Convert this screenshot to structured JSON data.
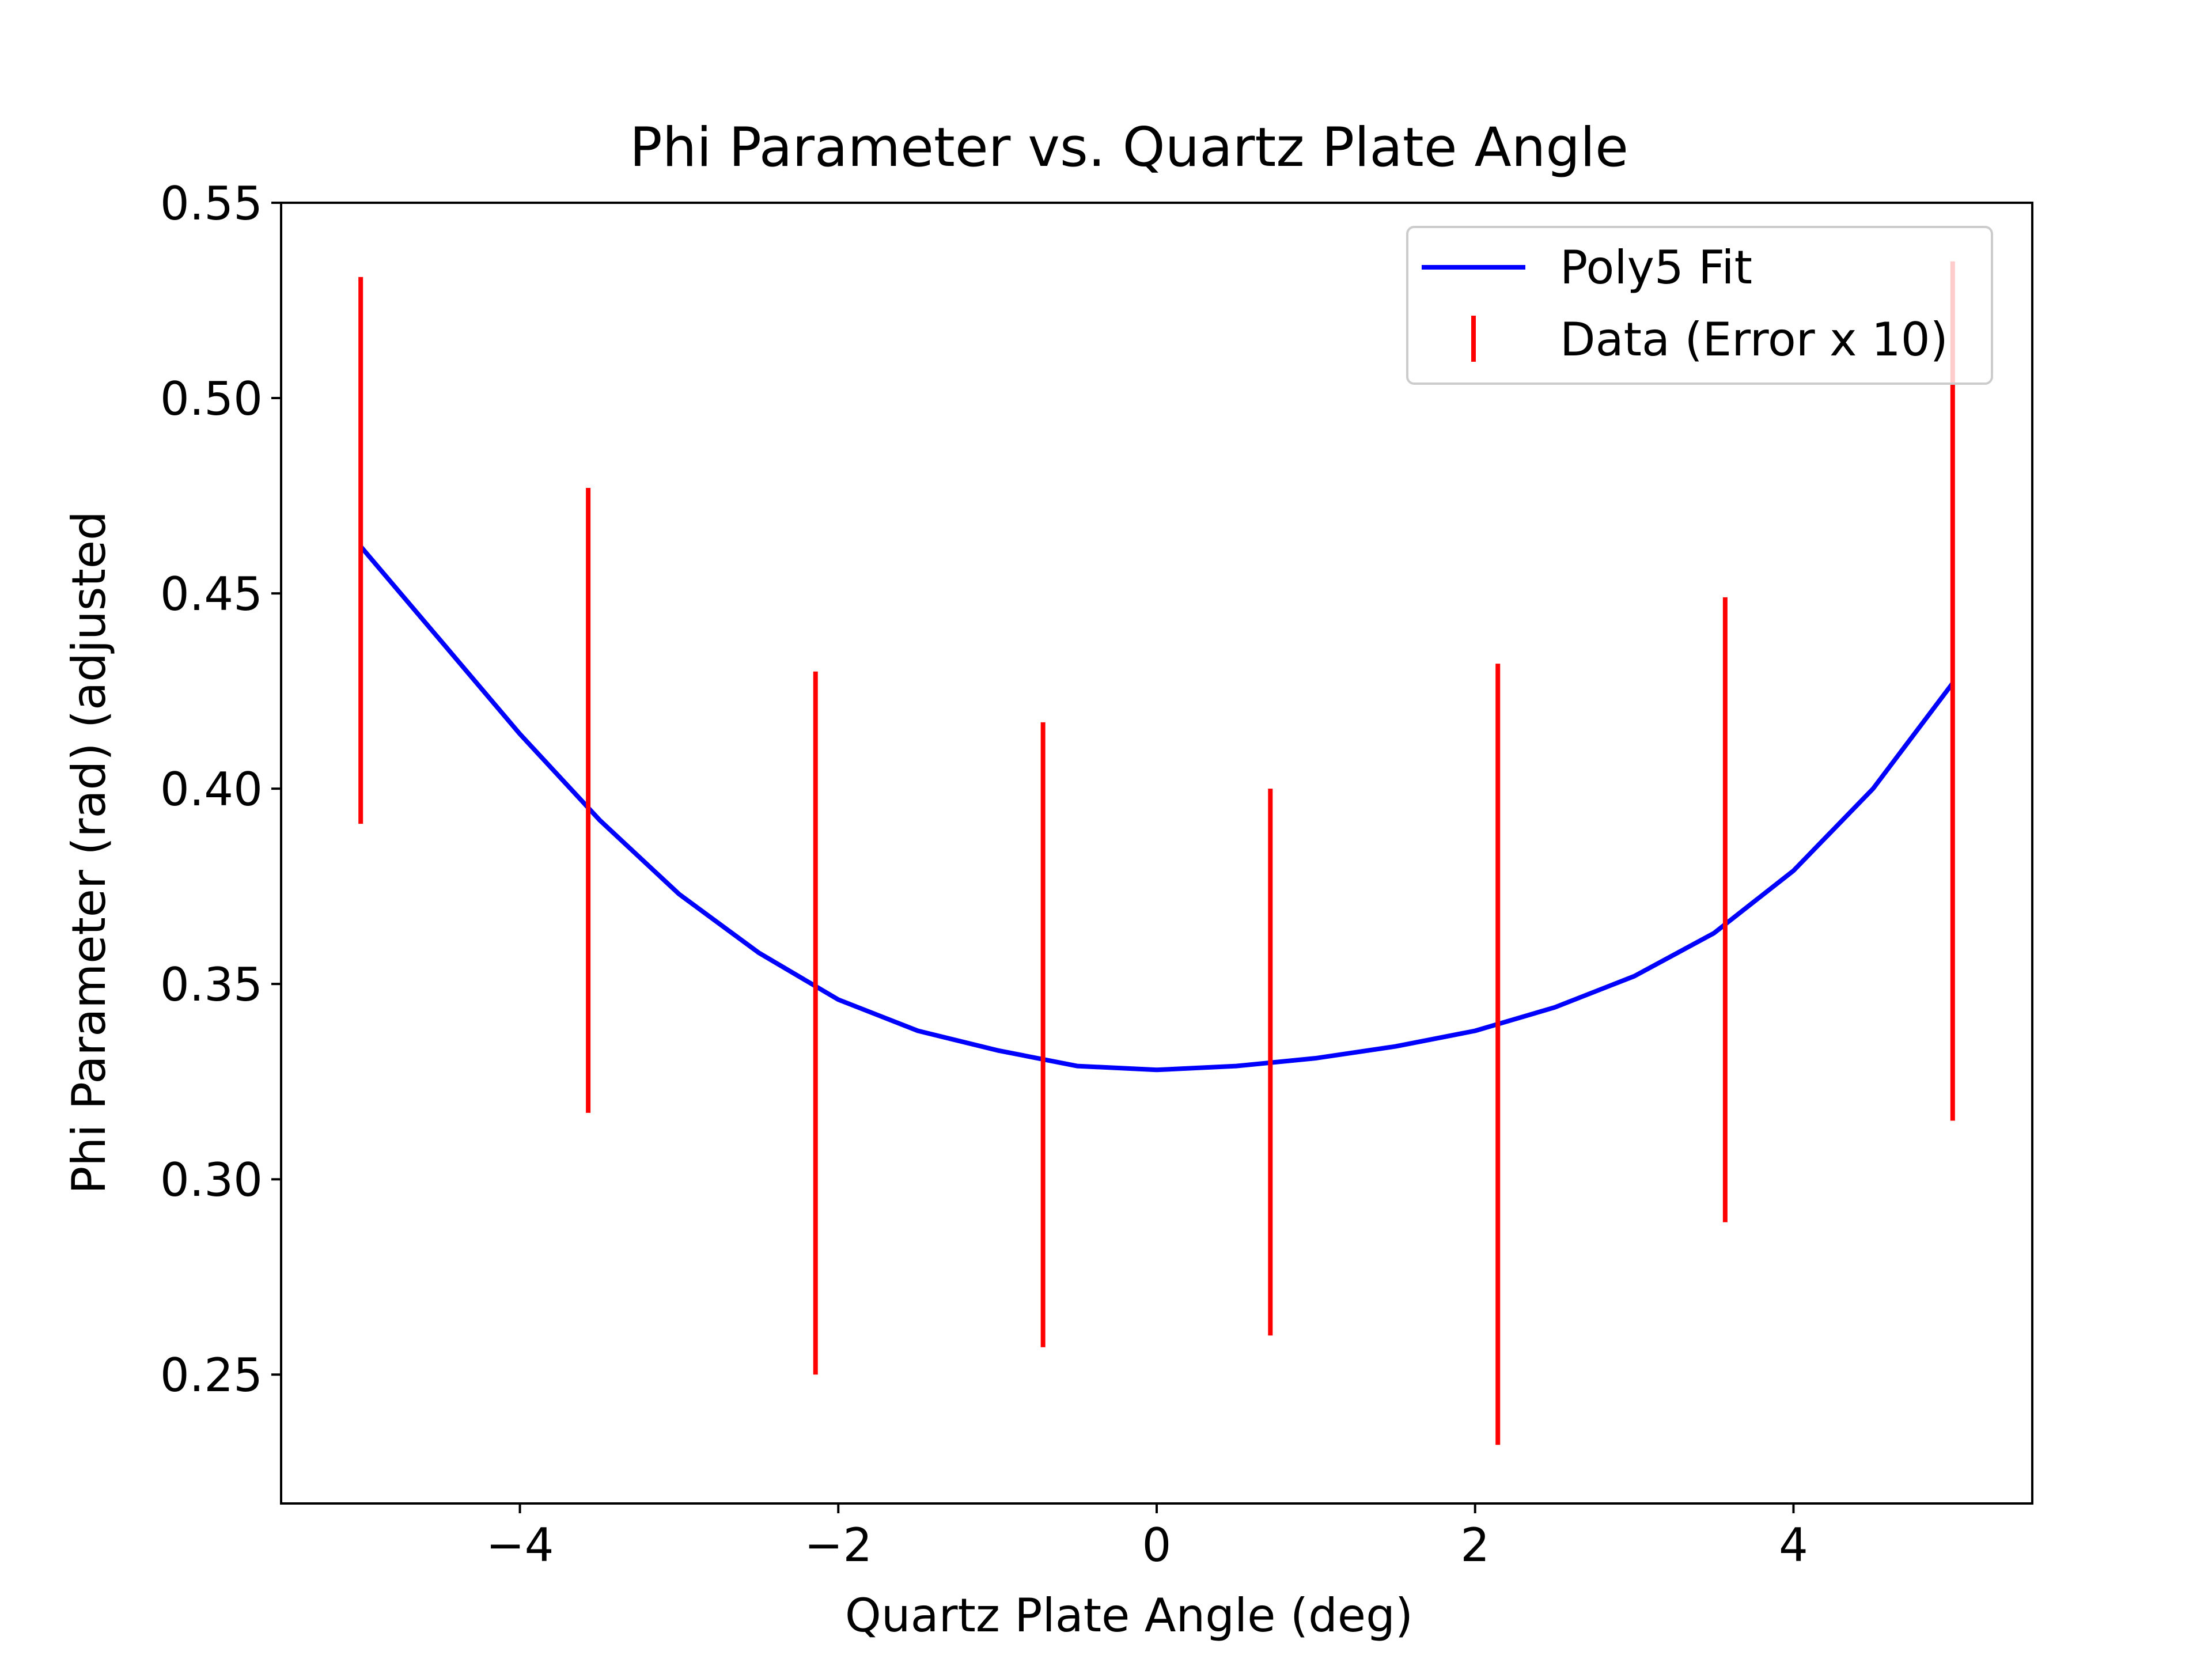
{
  "chart_data": {
    "type": "scatter",
    "title": "Phi Parameter vs. Quartz Plate Angle",
    "xlabel": "Quartz Plate Angle (deg)",
    "ylabel": "Phi Parameter (rad) (adjusted",
    "xlim": [
      -5.5,
      5.5
    ],
    "ylim": [
      0.217,
      0.55
    ],
    "xticks": [
      -4,
      -2,
      0,
      2,
      4
    ],
    "xtick_labels": [
      "−4",
      "−2",
      "0",
      "2",
      "4"
    ],
    "yticks": [
      0.25,
      0.3,
      0.35,
      0.4,
      0.45,
      0.5,
      0.55
    ],
    "ytick_labels": [
      "0.25",
      "0.30",
      "0.35",
      "0.40",
      "0.45",
      "0.50",
      "0.55"
    ],
    "grid": false,
    "legend_position": "upper right",
    "series": [
      {
        "name": "Poly5 Fit",
        "kind": "line",
        "color": "#0000ff",
        "x": [
          -5.0,
          -4.5,
          -4.0,
          -3.5,
          -3.0,
          -2.5,
          -2.0,
          -1.5,
          -1.0,
          -0.5,
          0.0,
          0.5,
          1.0,
          1.5,
          2.0,
          2.5,
          3.0,
          3.5,
          4.0,
          4.5,
          5.0
        ],
        "y": [
          0.462,
          0.438,
          0.414,
          0.392,
          0.373,
          0.358,
          0.346,
          0.338,
          0.333,
          0.329,
          0.328,
          0.329,
          0.331,
          0.334,
          0.338,
          0.344,
          0.352,
          0.363,
          0.379,
          0.4,
          0.427
        ]
      },
      {
        "name": "Data (Error x 10)",
        "kind": "errorbar",
        "color": "#ff0000",
        "x": [
          -5.0,
          -3.571,
          -2.143,
          -0.714,
          0.714,
          2.143,
          3.571,
          5.0
        ],
        "y_low": [
          0.391,
          0.317,
          0.25,
          0.257,
          0.26,
          0.232,
          0.289,
          0.315
        ],
        "y_high": [
          0.531,
          0.477,
          0.43,
          0.417,
          0.4,
          0.432,
          0.449,
          0.535
        ]
      }
    ]
  }
}
